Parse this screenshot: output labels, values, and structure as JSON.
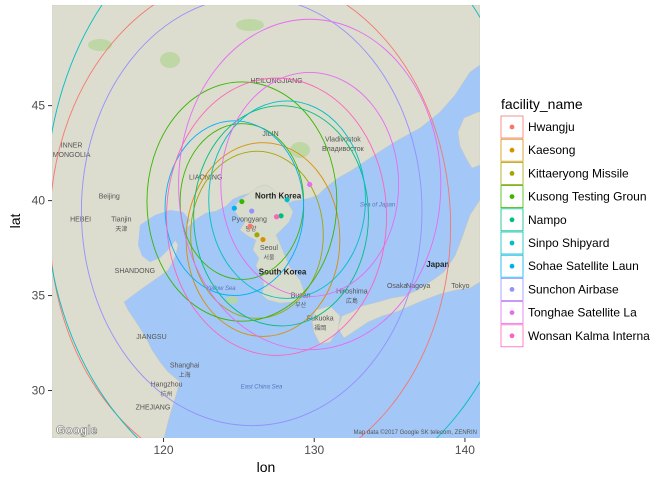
{
  "chart_data": {
    "type": "scatter",
    "xlabel": "lon",
    "ylabel": "lat",
    "xlim": [
      112.6,
      141.0
    ],
    "ylim": [
      27.5,
      50.3
    ],
    "x_ticks": [
      120,
      130,
      140
    ],
    "y_ticks": [
      30,
      35,
      40,
      45
    ],
    "legend_title": "facility_name",
    "legend_position": "right",
    "grid": false,
    "series": [
      {
        "name": "Hwangju",
        "color": "#F8766D",
        "lon": 125.75,
        "lat": 38.65,
        "radii_deg": [
          13.3
        ]
      },
      {
        "name": "Kaesong",
        "color": "#D89000",
        "lon": 126.6,
        "lat": 37.95,
        "radii_deg": [
          5.1
        ]
      },
      {
        "name": "Kittaeryong Missile",
        "color": "#A3A500",
        "lon": 126.2,
        "lat": 38.2,
        "radii_deg": [
          4.4
        ]
      },
      {
        "name": "Kusong Testing Groun",
        "color": "#39B600",
        "lon": 125.2,
        "lat": 39.95,
        "radii_deg": [
          6.3,
          4.1
        ]
      },
      {
        "name": "Nampo",
        "color": "#00BF7D",
        "lon": 127.8,
        "lat": 39.2,
        "radii_deg": [
          5.8
        ]
      },
      {
        "name": "Sinpo Shipyard",
        "color": "#00BFC4",
        "lon": 128.2,
        "lat": 40.05,
        "radii_deg": [
          16.0,
          5.2
        ]
      },
      {
        "name": "Sohae Satellite Laun",
        "color": "#00B0F6",
        "lon": 124.7,
        "lat": 39.6,
        "radii_deg": [
          4.6
        ]
      },
      {
        "name": "Sunchon Airbase",
        "color": "#9590FF",
        "lon": 125.85,
        "lat": 39.45,
        "radii_deg": [
          11.3
        ]
      },
      {
        "name": "Tonghae Satellite La",
        "color": "#E76BF3",
        "lon": 129.7,
        "lat": 40.85,
        "radii_deg": [
          8.7,
          5.9
        ]
      },
      {
        "name": "Wonsan Kalma Interna",
        "color": "#FF62BC",
        "lon": 127.5,
        "lat": 39.15,
        "radii_deg": [
          7.3
        ]
      }
    ]
  },
  "map": {
    "attribution": "Map data ©2017 Google  SK telecom, ZENRIN",
    "logo": "Google",
    "place_labels": [
      {
        "text": "HEILONGJIANG",
        "lon": 127.5,
        "lat": 46.2,
        "size": 7,
        "style": "map-label"
      },
      {
        "text": "INNER",
        "lon": 113.9,
        "lat": 42.8,
        "size": 7,
        "style": "map-label"
      },
      {
        "text": "MONGOLIA",
        "lon": 113.9,
        "lat": 42.3,
        "size": 7,
        "style": "map-label"
      },
      {
        "text": "JILIN",
        "lon": 127.1,
        "lat": 43.4,
        "size": 7,
        "style": "map-label"
      },
      {
        "text": "LIAONING",
        "lon": 122.8,
        "lat": 41.1,
        "size": 7,
        "style": "map-label"
      },
      {
        "text": "HEBEI",
        "lon": 114.5,
        "lat": 38.9,
        "size": 7,
        "style": "map-label"
      },
      {
        "text": "SHANDONG",
        "lon": 118.1,
        "lat": 36.2,
        "size": 7,
        "style": "map-label"
      },
      {
        "text": "JIANGSU",
        "lon": 119.2,
        "lat": 32.7,
        "size": 7,
        "style": "map-label"
      },
      {
        "text": "ZHEJIANG",
        "lon": 119.3,
        "lat": 29.0,
        "size": 7,
        "style": "map-label"
      },
      {
        "text": "Beijing",
        "lon": 116.4,
        "lat": 40.1,
        "size": 7,
        "style": "map-label"
      },
      {
        "text": "Tianjin",
        "lon": 117.2,
        "lat": 38.9,
        "size": 7,
        "style": "map-label"
      },
      {
        "text": "天津",
        "lon": 117.2,
        "lat": 38.4,
        "size": 6,
        "style": "map-label"
      },
      {
        "text": "Shanghai",
        "lon": 121.4,
        "lat": 31.2,
        "size": 7,
        "style": "map-label"
      },
      {
        "text": "上海",
        "lon": 121.4,
        "lat": 30.7,
        "size": 6,
        "style": "map-label"
      },
      {
        "text": "Hangzhou",
        "lon": 120.2,
        "lat": 30.2,
        "size": 7,
        "style": "map-label"
      },
      {
        "text": "杭州",
        "lon": 120.2,
        "lat": 29.7,
        "size": 6,
        "style": "map-label"
      },
      {
        "text": "Vladivostok",
        "lon": 131.9,
        "lat": 43.1,
        "size": 7,
        "style": "map-label"
      },
      {
        "text": "Владивосток",
        "lon": 131.9,
        "lat": 42.6,
        "size": 7,
        "style": "map-label"
      },
      {
        "text": "North Korea",
        "lon": 127.6,
        "lat": 40.1,
        "size": 8,
        "style": "map-label-bold"
      },
      {
        "text": "Pyongyang",
        "lon": 125.7,
        "lat": 38.9,
        "size": 7,
        "style": "map-label"
      },
      {
        "text": "평양",
        "lon": 125.8,
        "lat": 38.4,
        "size": 6,
        "style": "map-label"
      },
      {
        "text": "Seoul",
        "lon": 127.0,
        "lat": 37.4,
        "size": 7,
        "style": "map-label"
      },
      {
        "text": "서울",
        "lon": 127.0,
        "lat": 36.9,
        "size": 6,
        "style": "map-label"
      },
      {
        "text": "South Korea",
        "lon": 127.9,
        "lat": 36.1,
        "size": 8,
        "style": "map-label-bold"
      },
      {
        "text": "Busan",
        "lon": 129.1,
        "lat": 34.9,
        "size": 7,
        "style": "map-label"
      },
      {
        "text": "부산",
        "lon": 129.1,
        "lat": 34.4,
        "size": 6,
        "style": "map-label"
      },
      {
        "text": "Hiroshima",
        "lon": 132.5,
        "lat": 35.1,
        "size": 7,
        "style": "map-label"
      },
      {
        "text": "広島",
        "lon": 132.5,
        "lat": 34.6,
        "size": 6,
        "style": "map-label"
      },
      {
        "text": "Fukuoka",
        "lon": 130.4,
        "lat": 33.7,
        "size": 7,
        "style": "map-label"
      },
      {
        "text": "福岡",
        "lon": 130.4,
        "lat": 33.2,
        "size": 6,
        "style": "map-label"
      },
      {
        "text": "Osaka",
        "lon": 135.5,
        "lat": 35.4,
        "size": 7,
        "style": "map-label"
      },
      {
        "text": "Nagoya",
        "lon": 136.9,
        "lat": 35.4,
        "size": 7,
        "style": "map-label"
      },
      {
        "text": "Tokyo",
        "lon": 139.7,
        "lat": 35.4,
        "size": 7,
        "style": "map-label"
      },
      {
        "text": "Japan",
        "lon": 138.2,
        "lat": 36.5,
        "size": 8,
        "style": "map-label-bold"
      },
      {
        "text": "Sea of Japan",
        "lon": 134.2,
        "lat": 39.7,
        "size": 6,
        "style": "water-label"
      },
      {
        "text": "Yellow Sea",
        "lon": 123.8,
        "lat": 35.3,
        "size": 6,
        "style": "water-label"
      },
      {
        "text": "East China Sea",
        "lon": 126.5,
        "lat": 30.1,
        "size": 6,
        "style": "water-label"
      }
    ]
  }
}
